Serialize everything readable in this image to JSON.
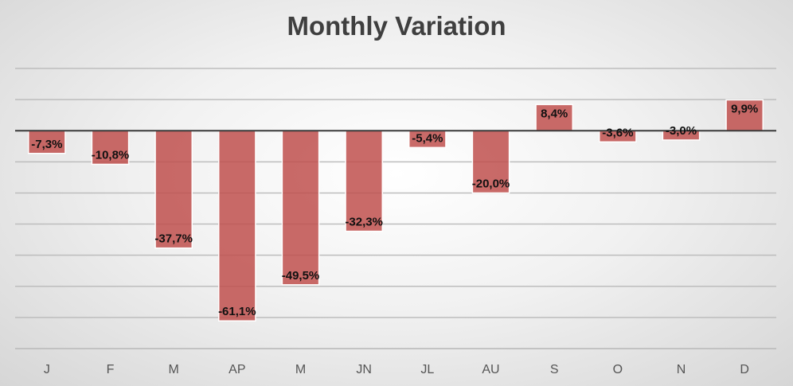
{
  "chart_data": {
    "type": "bar",
    "title": "Monthly Variation",
    "categories": [
      "J",
      "F",
      "M",
      "AP",
      "M",
      "JN",
      "JL",
      "AU",
      "S",
      "O",
      "N",
      "D"
    ],
    "values": [
      -7.3,
      -10.8,
      -37.7,
      -61.1,
      -49.5,
      -32.3,
      -5.4,
      -20.0,
      8.4,
      -3.6,
      -3.0,
      9.9
    ],
    "data_labels": [
      "-7,3%",
      "-10,8%",
      "-37,7%",
      "-61,1%",
      "-49,5%",
      "-32,3%",
      "-5,4%",
      "-20,0%",
      "8,4%",
      "-3,6%",
      "-3,0%",
      "9,9%"
    ],
    "ylim": [
      -70,
      20
    ],
    "grid": true,
    "legend": "none",
    "bar_color": "#c0504d"
  }
}
